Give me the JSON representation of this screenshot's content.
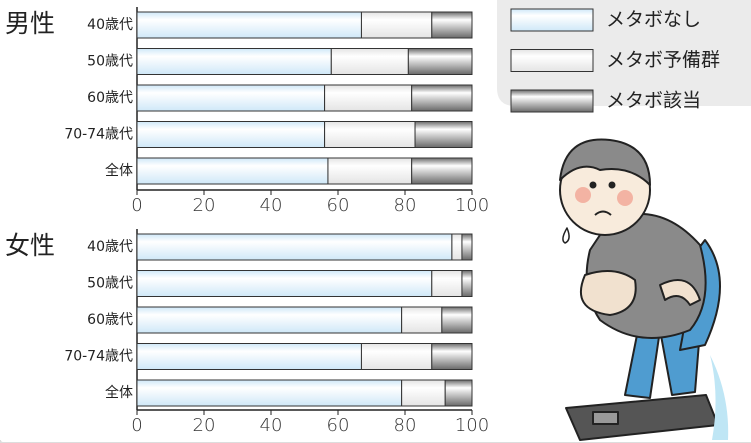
{
  "chart_data": [
    {
      "type": "stacked-bar-horizontal",
      "title": "男性",
      "categories": [
        "40歳代",
        "50歳代",
        "60歳代",
        "70-74歳代",
        "全体"
      ],
      "series": [
        {
          "name": "メタボなし",
          "color": "#cfe8f8",
          "values": [
            67,
            58,
            56,
            56,
            57
          ]
        },
        {
          "name": "メタボ予備群",
          "color": "#e4e4e4",
          "values": [
            21,
            23,
            26,
            27,
            25
          ]
        },
        {
          "name": "メタボ該当",
          "color": "#6a6a6a",
          "values": [
            12,
            19,
            18,
            17,
            18
          ]
        }
      ],
      "xlim": [
        0,
        100
      ],
      "xticks": [
        0,
        20,
        40,
        60,
        80,
        100
      ]
    },
    {
      "type": "stacked-bar-horizontal",
      "title": "女性",
      "categories": [
        "40歳代",
        "50歳代",
        "60歳代",
        "70-74歳代",
        "全体"
      ],
      "series": [
        {
          "color": "#cfe8f8",
          "values": [
            94,
            88,
            79,
            67,
            79
          ]
        },
        {
          "color": "#e4e4e4",
          "values": [
            3,
            9,
            12,
            21,
            13
          ]
        },
        {
          "color": "#6a6a6a",
          "values": [
            3,
            3,
            9,
            12,
            8
          ]
        }
      ],
      "xlim": [
        0,
        100
      ],
      "xticks": [
        0,
        20,
        40,
        60,
        80,
        100
      ]
    }
  ]
}
